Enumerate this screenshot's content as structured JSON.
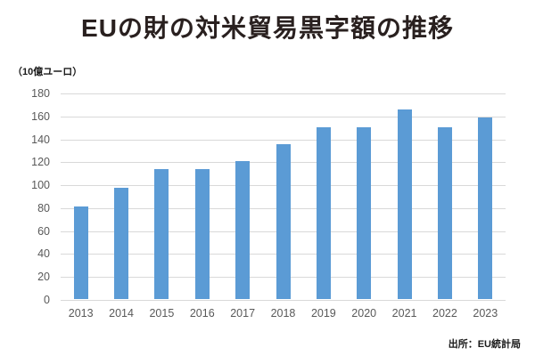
{
  "chart": {
    "title": "EUの財の対米貿易黒字額の推移",
    "unit_label": "（10億ユーロ）",
    "source": "出所：EU統計局"
  },
  "chart_data": {
    "type": "bar",
    "title": "EUの財の対米貿易黒字額の推移",
    "categories": [
      "2013",
      "2014",
      "2015",
      "2016",
      "2017",
      "2018",
      "2019",
      "2020",
      "2021",
      "2022",
      "2023"
    ],
    "values": [
      81,
      97,
      113,
      113,
      120,
      135,
      150,
      150,
      165,
      150,
      158
    ],
    "xlabel": "",
    "ylabel": "10億ユーロ",
    "ylim": [
      0,
      180
    ],
    "ytick_step": 20,
    "grid": true,
    "legend": false,
    "bar_color": "#5B9BD5",
    "gridline_color": "#D9D9D9",
    "tick_label_color": "#595959",
    "title_color": "#29201f"
  }
}
